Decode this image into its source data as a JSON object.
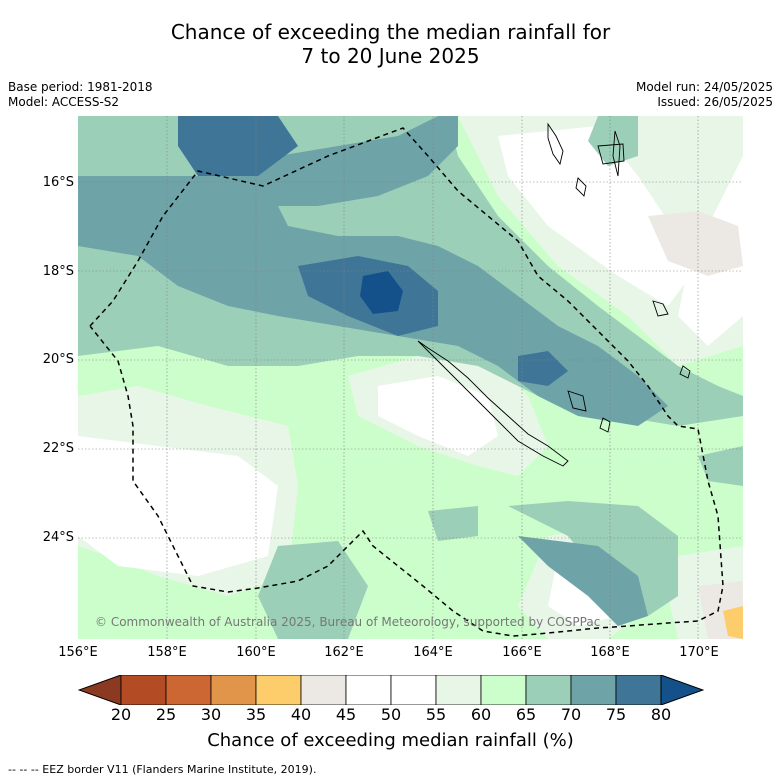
{
  "title_line1": "Chance of exceeding the median rainfall for",
  "title_line2": "7 to 20 June 2025",
  "base_period": "Base period: 1981-2018",
  "model": "Model: ACCESS-S2",
  "model_run": "Model run: 24/05/2025",
  "issued": "Issued: 26/05/2025",
  "lat_labels": [
    "16°S",
    "18°S",
    "20°S",
    "22°S",
    "24°S"
  ],
  "lon_labels": [
    "156°E",
    "158°E",
    "160°E",
    "162°E",
    "164°E",
    "166°E",
    "168°E",
    "170°E"
  ],
  "copyright": "© Commonwealth of Australia 2025, Bureau of Meteorology, supported by COSPPac",
  "colorbar": {
    "title": "Chance of exceeding median rainfall (%)",
    "ticks": [
      "20",
      "25",
      "30",
      "35",
      "40",
      "45",
      "50",
      "55",
      "60",
      "65",
      "70",
      "75",
      "80"
    ],
    "colors": [
      "#8b3a21",
      "#b34b24",
      "#cc6633",
      "#e0954a",
      "#fdcd6b",
      "#ece9e4",
      "#ffffff",
      "#ffffff",
      "#e8f6e8",
      "#ccfecc",
      "#9ccfb8",
      "#6ea4a8",
      "#3f7698",
      "#14508a"
    ]
  },
  "legend_line": "-- -- -- EEZ border V11 (Flanders Marine Institute, 2019)."
}
